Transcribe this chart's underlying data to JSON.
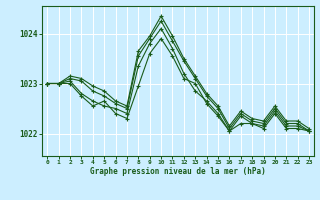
{
  "xlabel": "Graphe pression niveau de la mer (hPa)",
  "bg_color": "#cceeff",
  "grid_color": "#aaddcc",
  "line_color": "#1a5c1a",
  "ylim": [
    1021.55,
    1024.55
  ],
  "xlim": [
    -0.5,
    23.4
  ],
  "yticks": [
    1022,
    1023,
    1024
  ],
  "ytick_labels": [
    "1022",
    "1023",
    "1024"
  ],
  "xticks": [
    0,
    1,
    2,
    3,
    4,
    5,
    6,
    7,
    8,
    9,
    10,
    11,
    12,
    13,
    14,
    15,
    16,
    17,
    18,
    19,
    20,
    21,
    22,
    23
  ],
  "series": [
    [
      1023.0,
      1023.0,
      1023.0,
      1022.75,
      1022.55,
      1022.65,
      1022.4,
      1022.3,
      1022.95,
      1023.6,
      1023.9,
      1023.55,
      1023.1,
      1023.0,
      1022.6,
      1022.35,
      1022.05,
      1022.2,
      1022.2,
      1022.1,
      1022.4,
      1022.1,
      1022.1,
      1022.05
    ],
    [
      1023.0,
      1023.0,
      1023.05,
      1022.8,
      1022.65,
      1022.55,
      1022.5,
      1022.4,
      1023.35,
      1023.8,
      1024.1,
      1023.7,
      1023.2,
      1022.85,
      1022.65,
      1022.4,
      1022.05,
      1022.35,
      1022.2,
      1022.15,
      1022.45,
      1022.15,
      1022.15,
      1022.05
    ],
    [
      1023.0,
      1023.0,
      1023.1,
      1023.05,
      1022.85,
      1022.75,
      1022.6,
      1022.5,
      1023.55,
      1023.9,
      1024.25,
      1023.85,
      1023.45,
      1023.1,
      1022.75,
      1022.5,
      1022.1,
      1022.4,
      1022.25,
      1022.2,
      1022.5,
      1022.2,
      1022.2,
      1022.05
    ],
    [
      1023.0,
      1023.0,
      1023.15,
      1023.1,
      1022.95,
      1022.85,
      1022.65,
      1022.55,
      1023.65,
      1023.95,
      1024.35,
      1023.95,
      1023.5,
      1023.15,
      1022.8,
      1022.55,
      1022.15,
      1022.45,
      1022.3,
      1022.25,
      1022.55,
      1022.25,
      1022.25,
      1022.1
    ]
  ]
}
